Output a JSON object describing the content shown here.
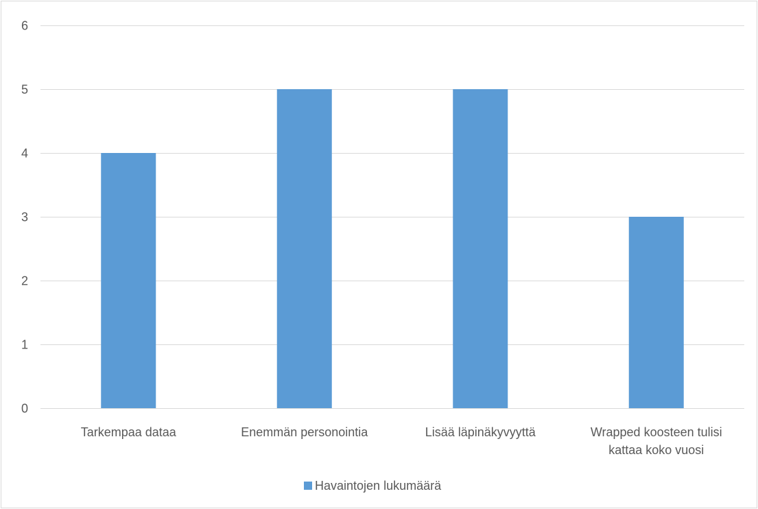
{
  "chart_data": {
    "type": "bar",
    "title": "",
    "xlabel": "",
    "ylabel": "",
    "categories": [
      [
        "Tarkempaa dataa"
      ],
      [
        "Enemmän personointia"
      ],
      [
        "Lisää läpinäkyvyyttä"
      ],
      [
        "Wrapped koosteen tulisi",
        "kattaa koko vuosi"
      ]
    ],
    "series": [
      {
        "name": "Havaintojen lukumäärä",
        "values": [
          4,
          5,
          5,
          3
        ],
        "color": "#5b9bd5"
      }
    ],
    "ylim": [
      0,
      6
    ],
    "yticks": [
      0,
      1,
      2,
      3,
      4,
      5,
      6
    ],
    "grid": true,
    "gridColor": "#d9d9d9",
    "legend": {
      "position": "bottom",
      "label": "Havaintojen lukumäärä"
    }
  }
}
